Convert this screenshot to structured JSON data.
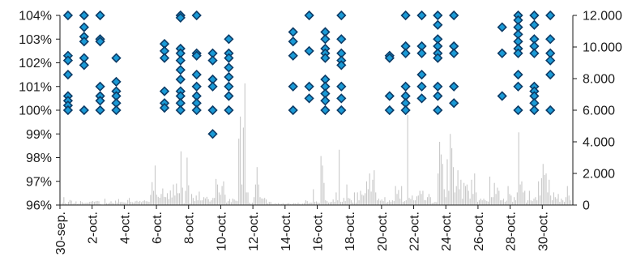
{
  "chart_data": {
    "type": "scatter",
    "y_left": {
      "ylim": [
        96,
        104
      ],
      "ticks": [
        96,
        97,
        98,
        99,
        100,
        101,
        102,
        103,
        104
      ],
      "tick_labels": [
        "96%",
        "97%",
        "98%",
        "99%",
        "100%",
        "101%",
        "102%",
        "103%",
        "104%"
      ]
    },
    "y_right": {
      "ylim": [
        0,
        12000
      ],
      "ticks": [
        0,
        2000,
        4000,
        6000,
        8000,
        10000,
        12000
      ],
      "tick_labels": [
        "0",
        "2.000",
        "4.000",
        "6.000",
        "8.000",
        "10.000",
        "12.000"
      ]
    },
    "x_axis": {
      "xlim": [
        0,
        31.9
      ],
      "ticks": [
        0,
        2,
        4,
        6,
        8,
        10,
        12,
        14,
        16,
        18,
        20,
        22,
        24,
        26,
        28,
        30
      ],
      "tick_labels": [
        "30-sep.",
        "2-oct.",
        "4-oct.",
        "6-oct.",
        "8-oct.",
        "10-oct.",
        "12-oct.",
        "14-oct.",
        "16-oct.",
        "18-oct.",
        "20-oct.",
        "22-oct.",
        "24-oct.",
        "26-oct.",
        "28-oct.",
        "30-oct."
      ]
    },
    "colors": {
      "marker": "#1a9ad6",
      "marker_edge": "#0d3b66",
      "bars": "#c8c8c8"
    },
    "marker_series": [
      {
        "x": 0.5,
        "y": [
          104,
          102.3,
          102.1,
          101.5,
          100.6,
          100.4,
          100.2,
          100
        ]
      },
      {
        "x": 1.5,
        "y": [
          104,
          103.5,
          103.1,
          102.9,
          102.2,
          101.9,
          100
        ]
      },
      {
        "x": 2.5,
        "y": [
          104,
          103,
          102.9,
          101,
          100.6,
          100.4,
          100
        ]
      },
      {
        "x": 3.5,
        "y": [
          102.2,
          101.2,
          100.8,
          100.6,
          100.3,
          100
        ]
      },
      {
        "x": 6.5,
        "y": [
          102.8,
          102.5,
          102.2,
          100.8,
          100.3,
          100.1
        ]
      },
      {
        "x": 7.5,
        "y": [
          104,
          103.9,
          102.6,
          102.4,
          102.1,
          101.7,
          101.3,
          100.8,
          100.6,
          100.3,
          100
        ]
      },
      {
        "x": 8.5,
        "y": [
          104,
          102.4,
          102.3,
          101.5,
          101,
          100.6,
          100.3,
          100
        ]
      },
      {
        "x": 9.5,
        "y": [
          102.4,
          102.1,
          101.3,
          101,
          100,
          99
        ]
      },
      {
        "x": 10.5,
        "y": [
          103,
          102.4,
          102.2,
          101.8,
          101.4,
          101,
          100.6,
          100
        ]
      },
      {
        "x": 14.5,
        "y": [
          103.3,
          102.9,
          102.3,
          101,
          100
        ]
      },
      {
        "x": 15.5,
        "y": [
          104,
          102.5,
          101,
          100.5
        ]
      },
      {
        "x": 16.5,
        "y": [
          103.3,
          103,
          102.6,
          102.4,
          102.2,
          101.3,
          101,
          100.7,
          100.4,
          100
        ]
      },
      {
        "x": 17.5,
        "y": [
          104,
          103,
          102.4,
          102.1,
          101.9,
          101,
          100.5,
          100
        ]
      },
      {
        "x": 20.5,
        "y": [
          102.3,
          102.2,
          100.6,
          100
        ]
      },
      {
        "x": 21.5,
        "y": [
          104,
          102.7,
          102.4,
          101,
          100.6,
          100.3,
          100
        ]
      },
      {
        "x": 22.5,
        "y": [
          104,
          102.7,
          102.4,
          101.5,
          101,
          100.5
        ]
      },
      {
        "x": 23.5,
        "y": [
          104,
          103.6,
          103,
          102.7,
          102.4,
          102.2,
          101,
          100.6,
          100
        ]
      },
      {
        "x": 24.5,
        "y": [
          104,
          102.7,
          102.4,
          101,
          100.3
        ]
      },
      {
        "x": 27.5,
        "y": [
          103.5,
          102.4,
          100.6
        ]
      },
      {
        "x": 28.5,
        "y": [
          104,
          103.8,
          103.5,
          103.2,
          102.9,
          102.6,
          102.4,
          101.5,
          101,
          100
        ]
      },
      {
        "x": 29.5,
        "y": [
          104,
          103.6,
          103,
          102.7,
          102.4,
          101,
          100.8,
          100.6,
          100.3,
          100
        ]
      },
      {
        "x": 30.5,
        "y": [
          104,
          103,
          102.4,
          102.1,
          101.5,
          100
        ]
      }
    ],
    "bar_series_values": [
      150,
      500,
      120,
      60,
      200,
      320,
      280,
      90,
      110,
      230,
      60,
      90,
      250,
      180,
      120,
      130,
      140,
      150,
      200,
      220,
      260,
      200,
      240,
      260,
      240,
      50,
      30,
      20,
      400,
      120,
      90,
      150,
      240,
      130,
      100,
      280,
      140,
      380,
      180,
      200,
      170,
      160,
      140,
      320,
      450,
      200,
      180,
      150,
      240,
      270,
      200,
      260,
      180,
      250,
      300,
      240,
      230,
      200,
      640,
      1450,
      900,
      2500,
      650,
      520,
      460,
      700,
      1050,
      520,
      500,
      750,
      380,
      920,
      480,
      1300,
      600,
      1360,
      750,
      750,
      3400,
      1100,
      100,
      900,
      3000,
      1250,
      110,
      700,
      450,
      250,
      600,
      300,
      850,
      290,
      300,
      500,
      420,
      520,
      370,
      220,
      300,
      450,
      450,
      1650,
      1300,
      800,
      650,
      1200,
      1500,
      650,
      150,
      250,
      380,
      180,
      410,
      350,
      280,
      250,
      4200,
      5600,
      1300,
      4900,
      7700,
      800,
      800,
      150,
      50,
      150,
      500,
      1300,
      2400,
      1300,
      500,
      420,
      400,
      450,
      350,
      100,
      200,
      200,
      60,
      60,
      110,
      70,
      120,
      50,
      70,
      120,
      60,
      80,
      100,
      120,
      50,
      60,
      120,
      110,
      80,
      150,
      80,
      50,
      90,
      120,
      300,
      250,
      120,
      160,
      150,
      1000,
      200,
      230,
      160,
      130,
      3100,
      2500,
      1400,
      300,
      250,
      150,
      180,
      200,
      350,
      200,
      800,
      300,
      3500,
      200,
      200,
      450,
      250,
      1300,
      450,
      400,
      300,
      150,
      800,
      150,
      800,
      300,
      900,
      650,
      600,
      750,
      1500,
      1000,
      2000,
      850,
      1600,
      2200,
      800,
      300,
      400,
      280,
      350,
      250,
      500,
      150,
      200,
      300,
      200,
      300,
      250,
      1200,
      700,
      950,
      400,
      1200,
      200,
      250,
      300,
      5700,
      450,
      380,
      600,
      300,
      300,
      550,
      600,
      900,
      700,
      900,
      320,
      300,
      500,
      700,
      500,
      120,
      150,
      200,
      180,
      2000,
      4000,
      3200,
      2600,
      1000,
      500,
      2900,
      900,
      4500,
      3600,
      2400,
      800,
      1200,
      2200,
      1000,
      1600,
      400,
      1400,
      1200,
      1300,
      900,
      400,
      1600,
      700,
      2000,
      800,
      200,
      300,
      400,
      300,
      400,
      300,
      250,
      220,
      1800,
      500,
      500,
      1400,
      700,
      1100,
      900,
      300,
      300,
      400,
      200,
      280,
      1200,
      700,
      600,
      200,
      500,
      300,
      800,
      4600,
      1300,
      1500,
      800,
      900,
      150,
      300,
      900,
      300,
      250,
      400,
      500,
      300,
      1500,
      600,
      1700,
      2600,
      1900,
      2000,
      800,
      1600,
      600,
      300,
      800,
      500,
      400,
      700,
      200,
      400,
      300,
      200,
      500,
      1200,
      600,
      300
    ]
  }
}
